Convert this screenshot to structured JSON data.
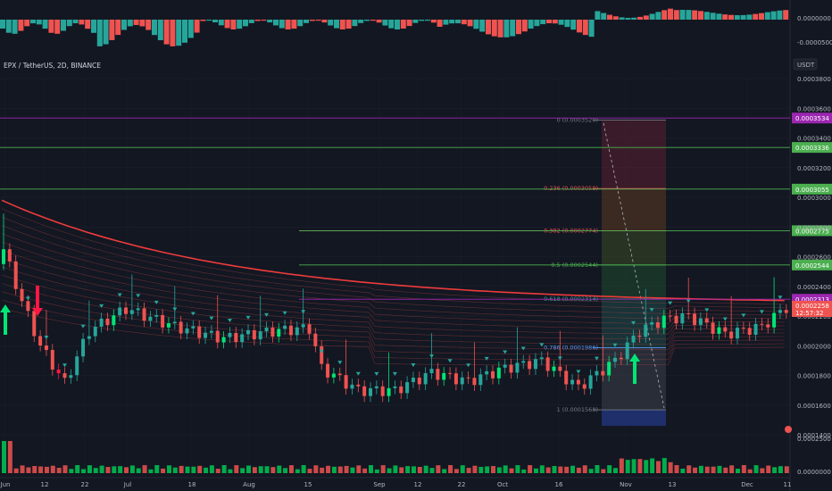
{
  "title": "EPX / TetherUS, 2D, BINANCE",
  "currency": "USDT",
  "osc_axis": [
    "0.0000000",
    "-0.0000500"
  ],
  "vol_axis": [
    "0.0002500",
    "0.0000000"
  ],
  "chart_data": {
    "type": "candlestick",
    "price_range": [
      0.00014,
      0.00039
    ],
    "price_ticks": [
      "0.0003800",
      "0.0003600",
      "0.0003400",
      "0.0003200",
      "0.0003000",
      "0.0002800",
      "0.0002600",
      "0.0002400",
      "0.0002200",
      "0.0002000",
      "0.0001800",
      "0.0001600",
      "0.0001400"
    ],
    "date_labels": [
      "Jun",
      "12",
      "22",
      "Jul",
      "18",
      "Aug",
      "15",
      "Sep",
      "12",
      "22",
      "Oct",
      "16",
      "Nov",
      "13",
      "Dec",
      "11"
    ],
    "horizontal_lines": [
      {
        "price": 0.0003534,
        "label": "0.0003534",
        "color": "#9c27b0"
      },
      {
        "price": 0.0003336,
        "label": "0.0003336",
        "color": "#4caf50"
      },
      {
        "price": 0.0003055,
        "label": "0.0003055",
        "color": "#4caf50"
      },
      {
        "price": 0.0002775,
        "label": "0.0002775",
        "color": "#4caf50"
      },
      {
        "price": 0.0002544,
        "label": "0.0002544",
        "color": "#4caf50"
      },
      {
        "price": 0.0002313,
        "label": "0.0002313",
        "color": "#9c27b0"
      }
    ],
    "last_price": {
      "label": "0.0002258",
      "countdown": "12:57:32"
    },
    "fib_levels": [
      {
        "label": "0 (0.0003520)",
        "price": 0.000352
      },
      {
        "label": "0.236 (0.0003059)",
        "price": 0.0003059
      },
      {
        "label": "0.382 (0.0002774)",
        "price": 0.0002774
      },
      {
        "label": "0.5 (0.0002544)",
        "price": 0.0002544
      },
      {
        "label": "0.618 (0.0002314)",
        "price": 0.0002314
      },
      {
        "label": "0.786 (0.0001986)",
        "price": 0.0001986
      },
      {
        "label": "1 (0.0001568)",
        "price": 0.0001568
      }
    ],
    "colors": {
      "up": "#26a69a",
      "down": "#ef5350",
      "bright_up": "#00e676",
      "bright_down": "#ff1744"
    }
  }
}
